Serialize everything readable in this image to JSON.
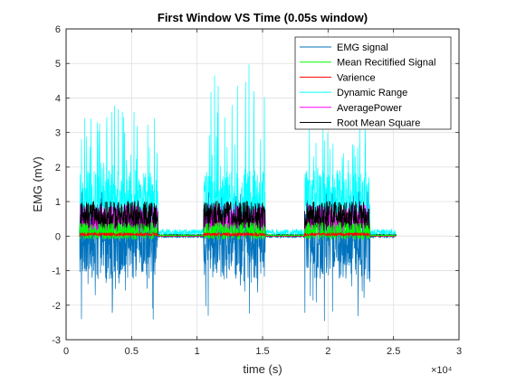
{
  "chart_data": {
    "type": "line",
    "title": "First Window VS Time (0.05s window)",
    "xlabel": "time (s)",
    "ylabel": "EMG (mV)",
    "x_exponent_label": "×10⁴",
    "xlim": [
      0,
      3
    ],
    "ylim": [
      -3,
      6
    ],
    "xticks": [
      0,
      0.5,
      1,
      1.5,
      2,
      2.5,
      3
    ],
    "xtick_labels": [
      "0",
      "0.5",
      "1",
      "1.5",
      "2",
      "2.5",
      "3"
    ],
    "yticks": [
      -3,
      -2,
      -1,
      0,
      1,
      2,
      3,
      4,
      5,
      6
    ],
    "ytick_labels": [
      "-3",
      "-2",
      "-1",
      "0",
      "1",
      "2",
      "3",
      "4",
      "5",
      "6"
    ],
    "grid": true,
    "legend_position": "top-right",
    "bursts": [
      {
        "start": 1.05,
        "end": 7.0,
        "peak": 3.8,
        "min": -2.0
      },
      {
        "start": 10.5,
        "end": 15.2,
        "peak": 5.0,
        "min": -2.5
      },
      {
        "start": 18.2,
        "end": 23.2,
        "peak": 3.3,
        "min": -2.0
      }
    ],
    "series": [
      {
        "name": "EMG signal",
        "color": "#0072BD",
        "burst_max": 1.3,
        "burst_min": -2.5,
        "rest_max": 0.05,
        "rest_min": -0.05
      },
      {
        "name": "Mean Recitified Signal",
        "color": "#00FF00",
        "burst_max": 0.5,
        "burst_min": -0.1,
        "rest_max": 0.04,
        "rest_min": 0.0
      },
      {
        "name": "Varience",
        "color": "#FF0000",
        "burst_max": 0.1,
        "burst_min": 0.0,
        "rest_max": 0.0,
        "rest_min": 0.0
      },
      {
        "name": "Dynamic Range",
        "color": "#00FFFF",
        "burst_max": 5.0,
        "burst_min": 0.0,
        "rest_max": 0.2,
        "rest_min": 0.0
      },
      {
        "name": "AveragePower",
        "color": "#FF00FF",
        "burst_max": 1.4,
        "burst_min": 0.1,
        "rest_max": 0.02,
        "rest_min": 0.0
      },
      {
        "name": "Root Mean Square",
        "color": "#000000",
        "burst_max": 1.4,
        "burst_min": 0.15,
        "rest_max": 0.05,
        "rest_min": 0.0
      }
    ]
  }
}
